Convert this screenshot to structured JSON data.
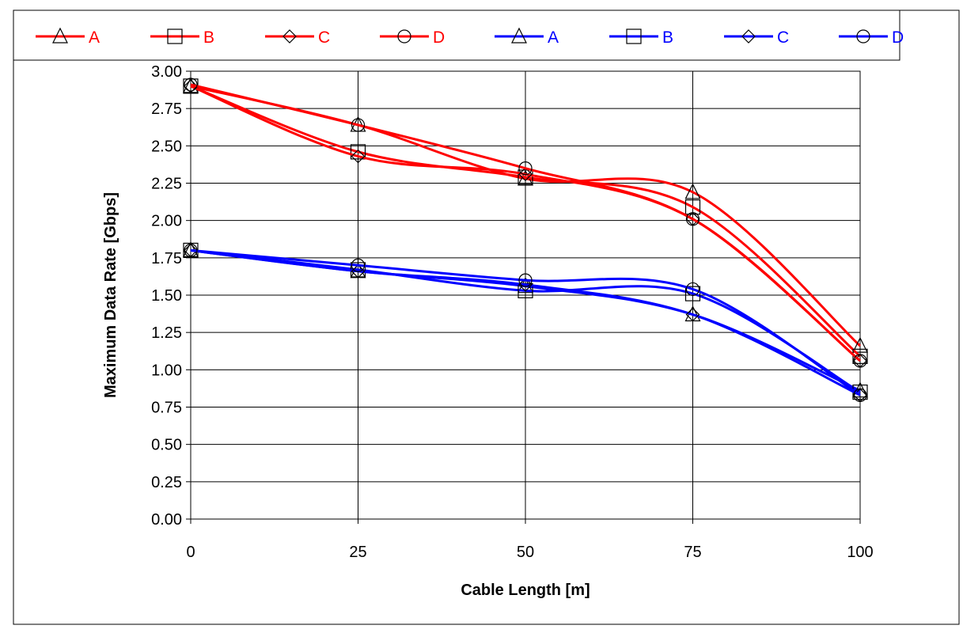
{
  "chart_data": {
    "type": "line",
    "title": "",
    "xlabel": "Cable Length [m]",
    "ylabel": "Maximum Data Rate [Gbps]",
    "x": [
      0,
      25,
      50,
      75,
      100
    ],
    "xlim": [
      0,
      100
    ],
    "ylim": [
      0,
      3.0
    ],
    "x_ticks": [
      "0",
      "25",
      "50",
      "75",
      "100"
    ],
    "y_ticks": [
      "0.00",
      "0.25",
      "0.50",
      "0.75",
      "1.00",
      "1.25",
      "1.50",
      "1.75",
      "2.00",
      "2.25",
      "2.50",
      "2.75",
      "3.00"
    ],
    "grid": true,
    "legend_position": "top",
    "series": [
      {
        "name": "A",
        "color": "#ff0000",
        "marker": "triangle",
        "values": [
          2.9,
          2.64,
          2.28,
          2.19,
          1.16
        ]
      },
      {
        "name": "B",
        "color": "#ff0000",
        "marker": "square",
        "values": [
          2.9,
          2.46,
          2.29,
          2.09,
          1.09
        ]
      },
      {
        "name": "C",
        "color": "#ff0000",
        "marker": "diamond",
        "values": [
          2.9,
          2.43,
          2.31,
          2.01,
          1.06
        ]
      },
      {
        "name": "D",
        "color": "#ff0000",
        "marker": "circle",
        "values": [
          2.91,
          2.64,
          2.35,
          2.01,
          1.06
        ]
      },
      {
        "name": "A",
        "color": "#0000ff",
        "marker": "triangle",
        "values": [
          1.8,
          1.66,
          1.56,
          1.37,
          0.86
        ]
      },
      {
        "name": "B",
        "color": "#0000ff",
        "marker": "square",
        "values": [
          1.8,
          1.67,
          1.53,
          1.51,
          0.85
        ]
      },
      {
        "name": "C",
        "color": "#0000ff",
        "marker": "diamond",
        "values": [
          1.8,
          1.66,
          1.57,
          1.37,
          0.83
        ]
      },
      {
        "name": "D",
        "color": "#0000ff",
        "marker": "circle",
        "values": [
          1.8,
          1.7,
          1.6,
          1.54,
          0.83
        ]
      }
    ]
  }
}
